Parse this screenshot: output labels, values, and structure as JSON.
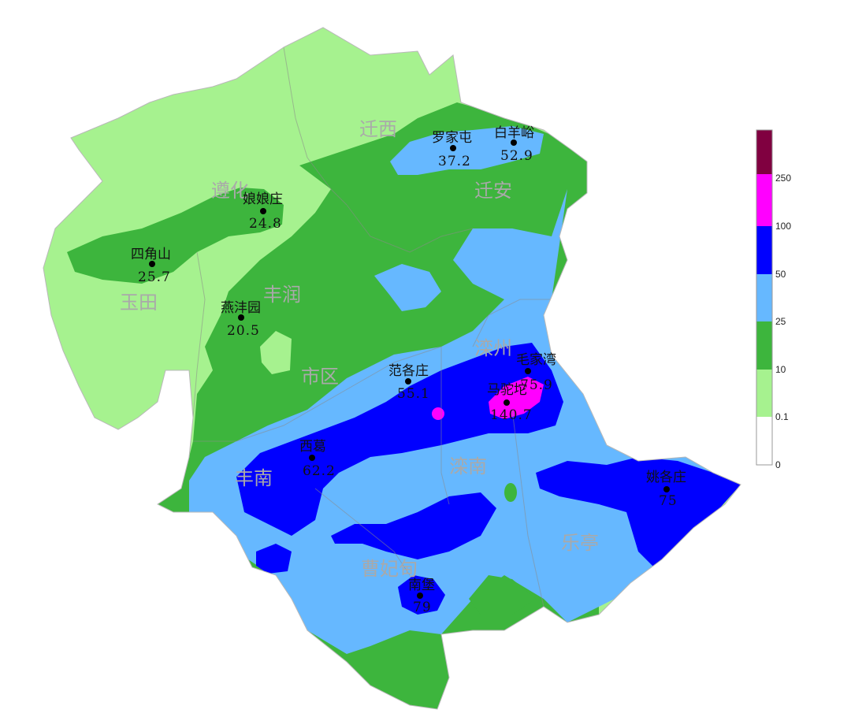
{
  "counties": [
    {
      "id": "qianxi",
      "name": "迁西"
    },
    {
      "id": "zunhua",
      "name": "遵化"
    },
    {
      "id": "qianan",
      "name": "迁安"
    },
    {
      "id": "yutian",
      "name": "玉田"
    },
    {
      "id": "fengrun",
      "name": "丰润"
    },
    {
      "id": "shiqu",
      "name": "市区"
    },
    {
      "id": "luanzhou",
      "name": "滦州"
    },
    {
      "id": "fengnan",
      "name": "丰南"
    },
    {
      "id": "luannan",
      "name": "滦南"
    },
    {
      "id": "caofeidian",
      "name": "曹妃甸"
    },
    {
      "id": "laoting",
      "name": "乐亭"
    }
  ],
  "stations": [
    {
      "id": "luojiatun",
      "name": "罗家屯",
      "value": "37.2"
    },
    {
      "id": "baiyangyu",
      "name": "白羊峪",
      "value": "52.9"
    },
    {
      "id": "niangniangzhuang",
      "name": "娘娘庄",
      "value": "24.8"
    },
    {
      "id": "sijiaoshan",
      "name": "四角山",
      "value": "25.7"
    },
    {
      "id": "yanfengyuan",
      "name": "燕沣园",
      "value": "20.5"
    },
    {
      "id": "fangezhuang",
      "name": "范各庄",
      "value": "55.1"
    },
    {
      "id": "maojiawan",
      "name": "毛家湾",
      "value": "75.9"
    },
    {
      "id": "madaotuo",
      "name": "马驼坨",
      "value": "140.7"
    },
    {
      "id": "xige",
      "name": "西葛",
      "value": "62.2"
    },
    {
      "id": "yaogezhuang",
      "name": "姚各庄",
      "value": "75"
    },
    {
      "id": "nanpu",
      "name": "南堡",
      "value": "79"
    }
  ],
  "legend": {
    "ticks": [
      "250",
      "100",
      "50",
      "25",
      "10",
      "0.1",
      "0"
    ],
    "colors": [
      "#800040",
      "#ff00ff",
      "#0000ff",
      "#66b8ff",
      "#3db53d",
      "#a6f28f",
      "#ffffff"
    ]
  },
  "colors": {
    "light_green": "#a6f28f",
    "green": "#3db53d",
    "light_blue": "#66b8ff",
    "blue": "#0000ff",
    "magenta": "#ff00ff",
    "maroon": "#800040"
  }
}
